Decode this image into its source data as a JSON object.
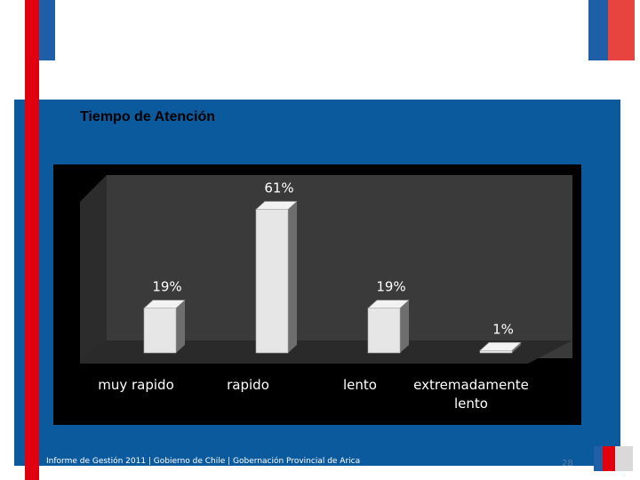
{
  "slide": {
    "title": "Tiempo de Atención",
    "footer": "Informe de Gestión 2011 | Gobierno de Chile | Gobernación Provincial de Arica",
    "page_number": "28"
  },
  "colors": {
    "panel_blue": "#0b5a9e",
    "accent_red": "#e10010",
    "accent_blue": "#1f5fa8",
    "chart_bg": "#333333",
    "bar_face": "#e6e6e6"
  },
  "chart_data": {
    "type": "bar",
    "categories": [
      "muy rapido",
      "rapido",
      "lento",
      "extremadamente lento"
    ],
    "category_lines": [
      [
        "muy rapido"
      ],
      [
        "rapido"
      ],
      [
        "lento"
      ],
      [
        "extremadamente",
        "lento"
      ]
    ],
    "values": [
      19,
      61,
      19,
      1
    ],
    "data_labels": [
      "19%",
      "61%",
      "19%",
      "1%"
    ],
    "ylim": [
      0,
      65
    ],
    "grid": false,
    "legend": "none",
    "style": "3d"
  }
}
